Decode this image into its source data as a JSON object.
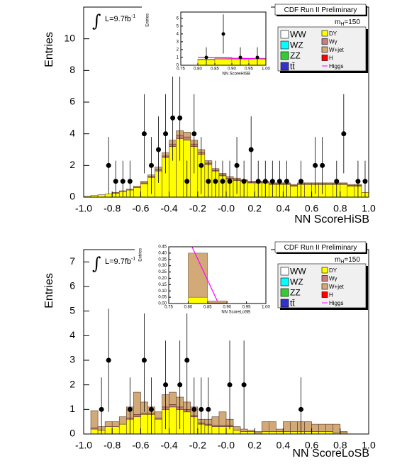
{
  "chart_data": [
    {
      "type": "histogram",
      "title": "CDF Run II Preliminary",
      "mass_label": [
        "m",
        "H",
        "=150"
      ],
      "lumi": [
        "∫",
        "L=9.7fb",
        "-1"
      ],
      "ylabel": "Entries",
      "xlabel": "NN ScoreHiSB",
      "bins": [
        -1,
        -0.95,
        -0.9,
        -0.85,
        -0.8,
        -0.75,
        -0.7,
        -0.65,
        -0.6,
        -0.55,
        -0.5,
        -0.45,
        -0.4,
        -0.35,
        -0.3,
        -0.25,
        -0.2,
        -0.15,
        -0.1,
        -0.05,
        0,
        0.05,
        0.1,
        0.15,
        0.2,
        0.25,
        0.3,
        0.35,
        0.4,
        0.45,
        0.5,
        0.55,
        0.6,
        0.65,
        0.7,
        0.75,
        0.8,
        0.85,
        0.9,
        0.95,
        1
      ],
      "xlim": [
        -1,
        1
      ],
      "xticks": [
        {
          "value": -1,
          "label": "-1.0"
        },
        -0.8,
        -0.6,
        -0.4,
        -0.2,
        {
          "value": 0,
          "label": "-0.0"
        },
        0.2,
        0.4,
        0.6,
        0.8,
        {
          "value": 1,
          "label": "1.0"
        }
      ],
      "ylim": [
        0,
        12
      ],
      "yticks": [
        0,
        2,
        4,
        6,
        8,
        10
      ],
      "series": [
        {
          "name": "WW",
          "color": "#ffffff"
        },
        {
          "name": "WZ",
          "color": "#00ffff"
        },
        {
          "name": "ZZ",
          "color": "#33cc33"
        },
        {
          "name": "tt̄",
          "color": "#3333cc"
        },
        {
          "name": "DY",
          "color": "#ffff00",
          "values": [
            0.05,
            0.1,
            0.15,
            0.2,
            0.25,
            0.35,
            0.45,
            0.6,
            0.85,
            1.25,
            1.65,
            2.5,
            3.2,
            3.7,
            3.6,
            3.2,
            2.7,
            2.05,
            1.65,
            1.35,
            1.15,
            1.05,
            1.0,
            0.9,
            0.9,
            0.9,
            0.8,
            0.8,
            0.8,
            0.7,
            0.8,
            0.8,
            0.8,
            0.8,
            0.8,
            0.8,
            0.8,
            0.7,
            0.7,
            0.3
          ]
        },
        {
          "name": "Wγ",
          "color": "#c87e7e",
          "values": [
            0,
            0,
            0,
            0,
            0,
            0,
            0,
            0,
            0.05,
            0.05,
            0.1,
            0.1,
            0.15,
            0.2,
            0.2,
            0.15,
            0.1,
            0.1,
            0.05,
            0.05,
            0.05,
            0.05,
            0.05,
            0.05,
            0.05,
            0.05,
            0.05,
            0.05,
            0.05,
            0.05,
            0.05,
            0.05,
            0.05,
            0.05,
            0.05,
            0.05,
            0.05,
            0.05,
            0.05,
            0
          ]
        },
        {
          "name": "W+jet",
          "color": "#d2aa78",
          "values": [
            0,
            0,
            0,
            0,
            0.05,
            0.05,
            0.05,
            0.1,
            0.1,
            0.1,
            0.15,
            0.2,
            0.25,
            0.3,
            0.3,
            0.25,
            0.2,
            0.15,
            0.1,
            0.1,
            0.1,
            0.1,
            0.05,
            0.05,
            0.05,
            0.05,
            0.05,
            0.05,
            0.05,
            0.05,
            0.05,
            0.05,
            0.05,
            0.05,
            0.05,
            0.05,
            0.05,
            0.05,
            0.05,
            0
          ]
        },
        {
          "name": "H",
          "color": "#ff0000"
        },
        {
          "name": "Higgs",
          "color": "#ff00ff",
          "style": "line"
        }
      ],
      "data_points": {
        "x": [
          -0.825,
          -0.775,
          -0.725,
          -0.675,
          -0.575,
          -0.525,
          -0.475,
          -0.425,
          -0.375,
          -0.325,
          -0.275,
          -0.225,
          -0.175,
          -0.125,
          -0.075,
          -0.025,
          0.025,
          0.075,
          0.125,
          0.175,
          0.225,
          0.275,
          0.325,
          0.375,
          0.425,
          0.525,
          0.625,
          0.675,
          0.775,
          0.825,
          0.925,
          0.975
        ],
        "values": [
          2,
          1,
          1,
          1,
          4,
          2,
          3,
          4,
          5,
          5,
          1,
          4,
          2,
          1,
          1,
          1,
          1,
          2,
          1,
          3,
          1,
          1,
          1,
          1,
          1,
          1,
          2,
          2,
          1,
          4,
          1,
          1
        ],
        "errors": [
          1.8,
          1.3,
          1.3,
          1.3,
          2.5,
          1.8,
          2.1,
          2.5,
          2.7,
          2.7,
          1.3,
          2.5,
          1.8,
          1.3,
          1.3,
          1.3,
          1.3,
          1.8,
          1.3,
          2.1,
          1.3,
          1.3,
          1.3,
          1.3,
          1.3,
          1.3,
          1.8,
          1.8,
          1.3,
          2.5,
          1.3,
          1.3
        ]
      },
      "inset": {
        "type": "histogram",
        "ylabel": "Entries",
        "xlabel": "NN ScoreHiSB",
        "bins": [
          0.75,
          0.8,
          0.85,
          0.9,
          0.95,
          1
        ],
        "xlim": [
          0.75,
          1
        ],
        "xticks": [
          0.75,
          {
            "value": 0.8,
            "label": "0.80"
          },
          0.85,
          {
            "value": 0.9,
            "label": "0.90"
          },
          0.95,
          {
            "value": 1,
            "label": "1.00"
          }
        ],
        "ylim": [
          0,
          6.8
        ],
        "yticks": [
          0,
          1,
          2,
          3,
          4,
          5,
          6
        ],
        "series": [
          {
            "name": "DY",
            "color": "#ffff00",
            "values": [
              0,
              0.7,
              0.8,
              0.8,
              0.8
            ]
          },
          {
            "name": "W+jet",
            "color": "#d2aa78",
            "values": [
              0,
              0.1,
              0.2,
              0.1,
              0.1
            ]
          }
        ],
        "higgs": {
          "name": "Higgs",
          "color": "#ff00ff",
          "x": [
            0.8,
            0.85,
            0.9,
            0.95,
            1
          ],
          "values": [
            1.0,
            0.95,
            0.9,
            0.85,
            0.8
          ]
        },
        "data_points": {
          "x": [
            0.825,
            0.875,
            0.925,
            0.975
          ],
          "values": [
            1,
            4,
            1,
            1
          ],
          "errors": [
            1.3,
            2.5,
            1.3,
            1.3
          ]
        }
      }
    },
    {
      "type": "histogram",
      "title": "CDF Run II Preliminary",
      "mass_label": [
        "m",
        "H",
        "=150"
      ],
      "lumi": [
        "∫",
        "L=9.7fb",
        "-1"
      ],
      "ylabel": "Entries",
      "xlabel": "NN ScoreLoSB",
      "bins": [
        -1,
        -0.95,
        -0.9,
        -0.85,
        -0.8,
        -0.75,
        -0.7,
        -0.65,
        -0.6,
        -0.55,
        -0.5,
        -0.45,
        -0.4,
        -0.35,
        -0.3,
        -0.25,
        -0.2,
        -0.15,
        -0.1,
        -0.05,
        0,
        0.05,
        0.1,
        0.15,
        0.2,
        0.25,
        0.3,
        0.35,
        0.4,
        0.45,
        0.5,
        0.55,
        0.6,
        0.65,
        0.7,
        0.75,
        0.8,
        0.85,
        0.9,
        0.95,
        1
      ],
      "xlim": [
        -1,
        1
      ],
      "xticks": [
        {
          "value": -1,
          "label": "-1.0"
        },
        -0.8,
        -0.6,
        -0.4,
        -0.2,
        {
          "value": 0,
          "label": "-0.0"
        },
        0.2,
        0.4,
        0.6,
        0.8,
        {
          "value": 1,
          "label": "1.0"
        }
      ],
      "ylim": [
        0,
        7.5
      ],
      "yticks": [
        0,
        1,
        2,
        3,
        4,
        5,
        6,
        7
      ],
      "series": [
        {
          "name": "WW",
          "color": "#ffffff"
        },
        {
          "name": "WZ",
          "color": "#00ffff"
        },
        {
          "name": "ZZ",
          "color": "#33cc33"
        },
        {
          "name": "tt̄",
          "color": "#3333cc"
        },
        {
          "name": "DY",
          "color": "#ffff00",
          "values": [
            0,
            0.2,
            0.15,
            0.3,
            0.3,
            0.4,
            0.6,
            0.7,
            0.8,
            0.8,
            0.6,
            1.0,
            1.1,
            1.0,
            0.9,
            0.7,
            0.4,
            0.35,
            0.3,
            0.3,
            0.3,
            0.15,
            0.1,
            0.1,
            0.05,
            0.1,
            0.1,
            0.1,
            0.1,
            0.1,
            0.1,
            0.1,
            0.1,
            0.1,
            0.1,
            0.05,
            0.05,
            0,
            0,
            0
          ]
        },
        {
          "name": "Wγ",
          "color": "#c87e7e",
          "values": [
            0,
            0.05,
            0,
            0,
            0,
            0,
            0.05,
            0.1,
            0.05,
            0.05,
            0.05,
            0.1,
            0.1,
            0.1,
            0.1,
            0.05,
            0.05,
            0.05,
            0.05,
            0.05,
            0.05,
            0,
            0,
            0,
            0,
            0,
            0,
            0,
            0,
            0,
            0,
            0,
            0,
            0,
            0,
            0,
            0,
            0,
            0,
            0
          ]
        },
        {
          "name": "W+jet",
          "color": "#d2aa78",
          "values": [
            0,
            0.7,
            0.15,
            0.2,
            0.2,
            0.3,
            0.45,
            0.9,
            0.45,
            0.25,
            0.25,
            0.5,
            0.5,
            0.4,
            0.3,
            0.35,
            0.15,
            0.2,
            0.35,
            0.55,
            0.25,
            0.15,
            0.1,
            0.05,
            0.05,
            0.4,
            0.4,
            0.1,
            0.4,
            0.4,
            0.4,
            0.4,
            0.3,
            0.3,
            0.3,
            0.35,
            0.05,
            0,
            0,
            0
          ]
        },
        {
          "name": "H",
          "color": "#ff0000"
        },
        {
          "name": "Higgs",
          "color": "#ff00ff",
          "style": "line"
        }
      ],
      "data_points": {
        "x": [
          -0.875,
          -0.825,
          -0.675,
          -0.575,
          -0.525,
          -0.425,
          -0.325,
          -0.275,
          -0.225,
          -0.175,
          -0.125,
          0.025,
          0.125,
          0.525
        ],
        "values": [
          1,
          3,
          1,
          3,
          1,
          2,
          2,
          3,
          1,
          1,
          1,
          2,
          2,
          1
        ],
        "errors": [
          1.3,
          2.1,
          1.3,
          2.1,
          1.3,
          1.8,
          1.8,
          2.1,
          1.3,
          1.3,
          1.3,
          1.8,
          1.8,
          1.3
        ]
      },
      "inset": {
        "type": "histogram",
        "ylabel": "Entries",
        "xlabel": "NN ScoreLoSB",
        "bins": [
          0.75,
          0.8,
          0.85,
          0.9,
          0.95,
          1
        ],
        "xlim": [
          0.75,
          1
        ],
        "xticks": [
          0.75,
          {
            "value": 0.8,
            "label": "0.80"
          },
          0.85,
          {
            "value": 0.9,
            "label": "0.90"
          },
          0.95,
          {
            "value": 1,
            "label": "1.00"
          }
        ],
        "ylim": [
          0,
          0.45
        ],
        "yticks": [
          {
            "value": 0,
            "label": "0.00"
          },
          0.05,
          {
            "value": 0.1,
            "label": "0.10"
          },
          0.15,
          {
            "value": 0.2,
            "label": "0.20"
          },
          0.25,
          {
            "value": 0.3,
            "label": "0.30"
          },
          0.35,
          {
            "value": 0.4,
            "label": "0.40"
          },
          0.45
        ],
        "series": [
          {
            "name": "DY",
            "color": "#ffff00",
            "values": [
              0,
              0.05,
              0.005,
              0,
              0
            ]
          },
          {
            "name": "W+jet",
            "color": "#d2aa78",
            "values": [
              0,
              0.35,
              0.015,
              0,
              0
            ]
          }
        ],
        "higgs": {
          "name": "Higgs",
          "color": "#ff00ff",
          "x": [
            0.81,
            0.875
          ],
          "values": [
            0.45,
            0.02
          ]
        }
      }
    }
  ]
}
